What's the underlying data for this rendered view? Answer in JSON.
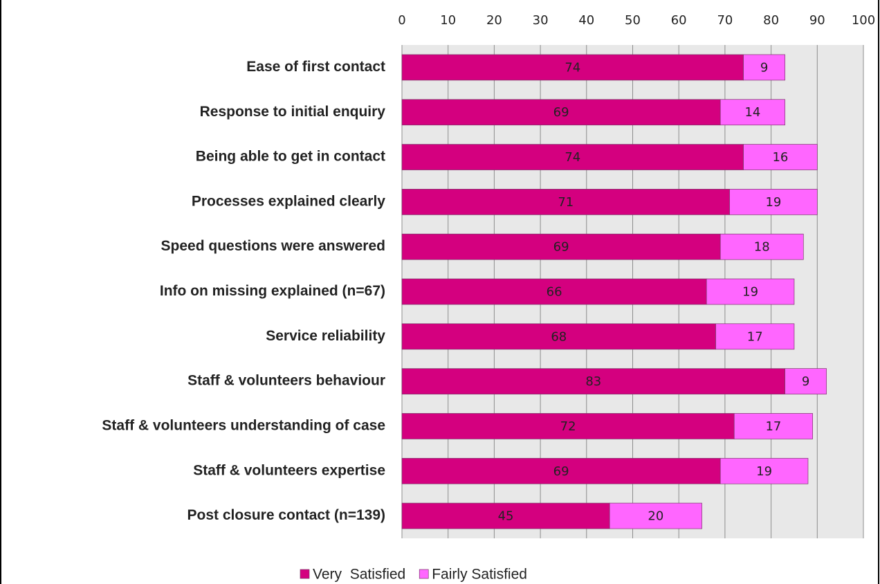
{
  "chart_data": {
    "type": "bar",
    "orientation": "horizontal",
    "stacked": true,
    "categories": [
      "Ease of first contact",
      "Response to initial enquiry",
      "Being able to get in contact",
      "Processes explained clearly",
      "Speed questions were answered",
      "Info on missing explained (n=67)",
      "Service reliability",
      "Staff & volunteers behaviour",
      "Staff & volunteers understanding of case",
      "Staff & volunteers expertise",
      "Post closure contact (n=139)"
    ],
    "series": [
      {
        "name": "Very  Satisfied",
        "color": "#d4007f",
        "values": [
          74,
          69,
          74,
          71,
          69,
          66,
          68,
          83,
          72,
          69,
          45
        ]
      },
      {
        "name": "Fairly Satisfied",
        "color": "#ff66ff",
        "values": [
          9,
          14,
          16,
          19,
          18,
          19,
          17,
          9,
          17,
          19,
          20
        ]
      }
    ],
    "xlim": [
      0,
      100
    ],
    "xticks": [
      0,
      10,
      20,
      30,
      40,
      50,
      60,
      70,
      80,
      90,
      100
    ],
    "grid": true,
    "legend": "bottom"
  }
}
